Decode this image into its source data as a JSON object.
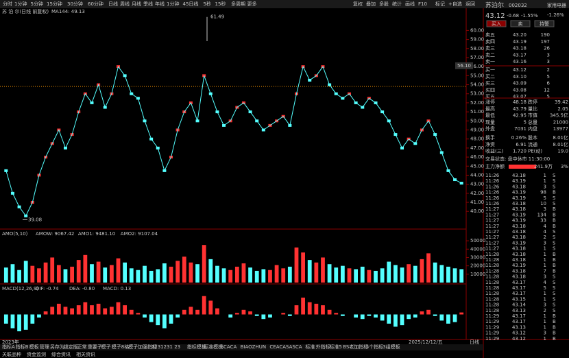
{
  "toolbar": {
    "periods": [
      "分时",
      "1分钟",
      "5分钟",
      "15分钟",
      "30分钟",
      "60分钟",
      "日线",
      "周线",
      "月线",
      "季线",
      "年线",
      "1分钟",
      "45日线",
      "5秒",
      "15秒",
      "多周期",
      "更多"
    ],
    "tools": [
      "复权",
      "叠加",
      "多股",
      "统计",
      "画线",
      "F10",
      "标记",
      "+自选",
      "返回"
    ]
  },
  "chart_data": [
    {
      "type": "line",
      "title": "苏 泊 尔(日线 前复权)",
      "indicator": "MA144: 49.13",
      "color": "#54ffff",
      "values": [
        44.5,
        42,
        40.5,
        39.5,
        41,
        44,
        46,
        47.5,
        49,
        47,
        48.5,
        51,
        53,
        52,
        54,
        51.5,
        53,
        56,
        55,
        53,
        52.5,
        50,
        48,
        47,
        44.5,
        46,
        49,
        51,
        52,
        50,
        55,
        53,
        51,
        49.5,
        50,
        51.5,
        52,
        51,
        50,
        49,
        49.5,
        50,
        50.5,
        49.5,
        53,
        56,
        54.5,
        55,
        56,
        54,
        53,
        52.5,
        53,
        52,
        51.5,
        52.5,
        52,
        51,
        50,
        48.5,
        47,
        48,
        47.5,
        49,
        50,
        48.5,
        46.5,
        44.5,
        43.5,
        43.12
      ],
      "ylim": [
        38.5,
        62
      ],
      "yticks": [
        {
          "value": 40,
          "label": "40.00"
        },
        {
          "value": 41,
          "label": "41.00"
        },
        {
          "value": 42,
          "label": "42.00"
        },
        {
          "value": 43,
          "label": "43.00"
        },
        {
          "value": 44,
          "label": "44.00"
        },
        {
          "value": 45,
          "label": "45.00"
        },
        {
          "value": 46,
          "label": "46.00"
        },
        {
          "value": 47,
          "label": "47.00"
        },
        {
          "value": 48,
          "label": "48.00"
        },
        {
          "value": 49,
          "label": "49.00"
        },
        {
          "value": 50,
          "label": "50.00"
        },
        {
          "value": 51,
          "label": "51.00"
        },
        {
          "value": 52,
          "label": "52.00"
        },
        {
          "value": 53,
          "label": "53.00"
        },
        {
          "value": 54,
          "label": "54.00"
        },
        {
          "value": 55,
          "label": "55.00"
        },
        {
          "value": 56,
          "label": "56.00"
        },
        {
          "value": 57,
          "label": "57.00"
        },
        {
          "value": 58,
          "label": "58.00"
        },
        {
          "value": 59,
          "label": "59.00"
        },
        {
          "value": 60,
          "label": "60.00"
        }
      ],
      "high": 61.49,
      "low": 39.08,
      "crosshair": {
        "value": 56.1,
        "label": "56.10"
      }
    },
    {
      "type": "bar",
      "title": "AMO(5,10)",
      "indicators": [
        "AMOW: 9067.42",
        "AMO1: 9481.10",
        "AMO2: 9107.04"
      ],
      "values": [
        18000,
        22000,
        15000,
        26000,
        20000,
        17000,
        24000,
        30000,
        21000,
        16000,
        19000,
        27000,
        33000,
        22000,
        25000,
        18000,
        21000,
        29000,
        24000,
        17000,
        15000,
        20000,
        14000,
        16000,
        23000,
        19000,
        26000,
        31000,
        24000,
        22000,
        45000,
        28000,
        20000,
        17000,
        15000,
        19000,
        23000,
        18000,
        14000,
        16000,
        15000,
        21000,
        17000,
        19000,
        42000,
        36000,
        27000,
        24000,
        30000,
        22000,
        18000,
        20000,
        17000,
        16000,
        19000,
        15000,
        14000,
        17000,
        25000,
        21000,
        18000,
        22000,
        20000,
        28000,
        35000,
        24000,
        21000,
        19000,
        17000,
        16000
      ],
      "ylim": [
        0,
        55000
      ],
      "yticks": [
        10000,
        20000,
        30000,
        40000,
        50000
      ]
    },
    {
      "type": "bar",
      "title": "MACD(12,26,9)",
      "indicators": [
        "DIF: -0.74",
        "DEA: -0.80",
        "MACD: 0.13"
      ],
      "values": [
        -0.6,
        -0.9,
        -1.1,
        -1.0,
        -0.6,
        -0.2,
        0.2,
        0.5,
        0.7,
        0.5,
        0.4,
        0.6,
        0.8,
        0.6,
        0.7,
        0.4,
        0.5,
        0.8,
        0.6,
        0.3,
        0.1,
        -0.2,
        -0.5,
        -0.7,
        -0.9,
        -0.6,
        -0.2,
        0.3,
        0.5,
        0.3,
        1.2,
        0.9,
        0.4,
        0,
        -0.2,
        0.1,
        0.3,
        0.2,
        -0.1,
        -0.3,
        -0.2,
        0,
        0.1,
        -0.1,
        0.6,
        1.1,
        0.8,
        0.7,
        0.6,
        0.3,
        0.1,
        -0.1,
        0,
        -0.2,
        -0.3,
        -0.1,
        -0.2,
        -0.4,
        -0.6,
        -0.8,
        -0.7,
        -0.3,
        -0.2,
        0.2,
        0.3,
        -0.1,
        -0.4,
        -0.6,
        -0.5,
        0.13
      ],
      "ylim": [
        -1.5,
        1.5
      ]
    }
  ],
  "date_labels": [
    "2023年",
    "2025/12/12/五"
  ],
  "quote": {
    "name": "苏泊尔",
    "code": "002032",
    "price": "43.12",
    "change": "-0.68",
    "pct": "-1.55%",
    "sector": "家用电器",
    "sector_pct": "-1.26%",
    "buttons": [
      "买入",
      "卖",
      "持警"
    ],
    "book": [
      [
        "卖五",
        "43.20",
        "190"
      ],
      [
        "卖四",
        "43.19",
        "197"
      ],
      [
        "卖三",
        "43.18",
        "26"
      ],
      [
        "卖二",
        "43.17",
        "3"
      ],
      [
        "卖一",
        "43.16",
        "3"
      ],
      [
        "买一",
        "43.12",
        "2"
      ],
      [
        "买二",
        "43.10",
        "5"
      ],
      [
        "买三",
        "43.09",
        "6"
      ],
      [
        "买四",
        "43.08",
        "12"
      ],
      [
        "买五",
        "43.07",
        "5"
      ]
    ],
    "stats": [
      [
        "涨停",
        "48.18",
        "跌停",
        "39.42"
      ],
      [
        "最高",
        "43.79",
        "量比",
        "2.05"
      ],
      [
        "最低",
        "42.95",
        "市值",
        "345.5亿"
      ],
      [
        "现量",
        "5",
        "总量",
        "21000"
      ],
      [
        "外盘",
        "7031",
        "内盘",
        "13977"
      ],
      [
        "换手",
        "0.26%",
        "股本",
        "8.01亿"
      ],
      [
        "净资",
        "6.91",
        "流通",
        "8.01亿"
      ],
      [
        "收益(三)",
        "1.720",
        "PE(动)",
        "19.0"
      ]
    ],
    "status": "交易状态: 盘中休市 11:30:00",
    "main_flow": [
      "主力净额",
      "241.9万",
      "3%"
    ],
    "ticks": [
      [
        "11:26",
        "43.18",
        "1",
        "S"
      ],
      [
        "11:26",
        "43.19",
        "1",
        "S"
      ],
      [
        "11:26",
        "43.18",
        "3",
        "S"
      ],
      [
        "11:26",
        "43.19",
        "98",
        "B"
      ],
      [
        "11:26",
        "43.19",
        "5",
        "S"
      ],
      [
        "11:26",
        "43.18",
        "10",
        "S"
      ],
      [
        "11:27",
        "43.18",
        "3",
        "B"
      ],
      [
        "11:27",
        "43.19",
        "134",
        "B"
      ],
      [
        "11:27",
        "43.19",
        "33",
        "B"
      ],
      [
        "11:27",
        "43.18",
        "4",
        "B"
      ],
      [
        "11:27",
        "43.18",
        "4",
        "S"
      ],
      [
        "11:27",
        "43.18",
        "2",
        "S"
      ],
      [
        "11:27",
        "43.19",
        "3",
        "S"
      ],
      [
        "11:27",
        "43.18",
        "1",
        "S"
      ],
      [
        "11:28",
        "43.18",
        "1",
        "B"
      ],
      [
        "11:28",
        "43.18",
        "1",
        "B"
      ],
      [
        "11:28",
        "43.19",
        "1",
        "B"
      ],
      [
        "11:28",
        "43.18",
        "7",
        "B"
      ],
      [
        "11:28",
        "43.18",
        "3",
        "S"
      ],
      [
        "11:28",
        "43.17",
        "4",
        "S"
      ],
      [
        "11:28",
        "43.17",
        "5",
        "S"
      ],
      [
        "11:28",
        "43.17",
        "1",
        "S"
      ],
      [
        "11:28",
        "43.15",
        "1",
        "S"
      ],
      [
        "11:28",
        "43.14",
        "3",
        "S"
      ],
      [
        "11:28",
        "43.13",
        "2",
        "S"
      ],
      [
        "11:29",
        "43.17",
        "1",
        "B"
      ],
      [
        "11:29",
        "43.17",
        "1",
        "B"
      ],
      [
        "11:29",
        "43.13",
        "1",
        "B"
      ],
      [
        "11:29",
        "43.12",
        "3",
        "B"
      ],
      [
        "11:29",
        "43.12",
        "1",
        "B"
      ]
    ]
  },
  "bottom": {
    "tabs": [
      "指标A",
      "指标B",
      "模板",
      "管理",
      "另存为",
      "锁定版",
      "正常",
      "重要子",
      "模子",
      "模子8格",
      "模子加强指标",
      "1231231 23",
      "指标模板",
      "标准模板",
      "SCACA",
      "BIAOZHUN",
      "CEACASASCA",
      "标准",
      "外指标",
      "标准5",
      "BS老加指标",
      "5个指标",
      "3组模板"
    ],
    "links": [
      "关联品种",
      "资金监测",
      "综合资讯",
      "相关资讯"
    ],
    "period": "日线"
  }
}
